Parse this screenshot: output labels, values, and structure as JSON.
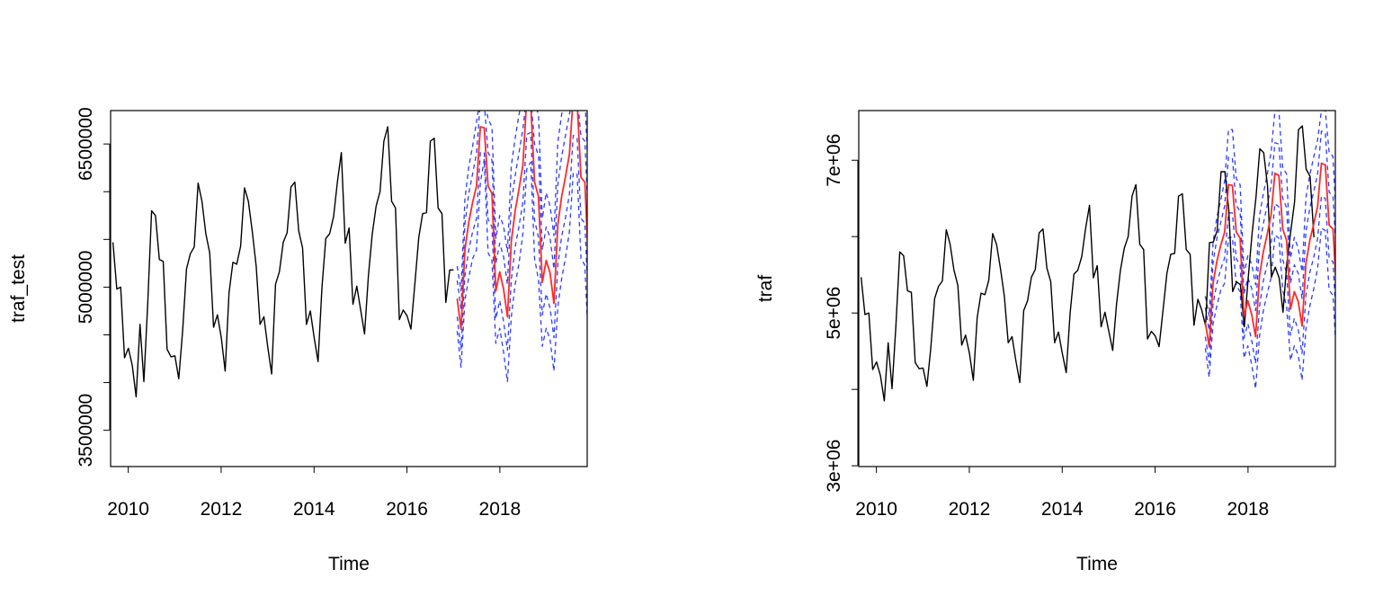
{
  "colors": {
    "observed": "#000000",
    "forecast": "#ff2a2a",
    "interval": "#2b3cff",
    "frame": "#000000"
  },
  "chart_data": [
    {
      "type": "line",
      "title": "",
      "xlabel": "Time",
      "ylabel": "traf_test",
      "xlim": [
        2009.62,
        2019.88
      ],
      "ylim": [
        3120000,
        6850000
      ],
      "x_ticks": [
        2010,
        2012,
        2014,
        2016,
        2018
      ],
      "x_tick_labels": [
        "2010",
        "2012",
        "2014",
        "2016",
        "2018"
      ],
      "y_ticks": [
        3500000,
        4000000,
        4500000,
        5000000,
        5500000,
        6000000,
        6500000
      ],
      "y_tick_labels": [
        "3500000",
        "",
        "",
        "5000000",
        "",
        "",
        "6500000"
      ],
      "grid": false,
      "series": [
        {
          "role": "observed",
          "start": 2009.67,
          "frequency": 12,
          "values": [
            5470000,
            4980000,
            5000000,
            4260000,
            4360000,
            4180000,
            3850000,
            4610000,
            4010000,
            4830000,
            5800000,
            5750000,
            5290000,
            5270000,
            4350000,
            4270000,
            4280000,
            4040000,
            4540000,
            5190000,
            5350000,
            5420000,
            6090000,
            5900000,
            5560000,
            5360000,
            4580000,
            4710000,
            4470000,
            4120000,
            4940000,
            5260000,
            5240000,
            5430000,
            6040000,
            5900000,
            5580000,
            5220000,
            4610000,
            4690000,
            4370000,
            4090000,
            5030000,
            5160000,
            5470000,
            5570000,
            6050000,
            6100000,
            5590000,
            5410000,
            4610000,
            4750000,
            4470000,
            4220000,
            4990000,
            5510000,
            5560000,
            5740000,
            6110000,
            6410000,
            5460000,
            5620000,
            4820000,
            5010000,
            4760000,
            4510000,
            5120000,
            5560000,
            5850000,
            6000000,
            6530000,
            6680000,
            5900000,
            5830000,
            4660000,
            4760000,
            4700000,
            4560000,
            5040000,
            5520000,
            5770000,
            5780000,
            6530000,
            6560000,
            5830000,
            5770000,
            4840000,
            5180000,
            5180000
          ]
        },
        {
          "role": "forecast",
          "start": 2017.08,
          "frequency": 12,
          "values": [
            4880000,
            4560000,
            5390000,
            5680000,
            5890000,
            6060000,
            6680000,
            6670000,
            6060000,
            5980000,
            4960000,
            5160000,
            4980000,
            4690000,
            5480000,
            5800000,
            6030000,
            6280000,
            6980000,
            6920000,
            6100000,
            5950000,
            5050000,
            5280000,
            5150000,
            4830000,
            5650000,
            5950000,
            6160000,
            6390000,
            7000000,
            6940000,
            6150000,
            6100000,
            5190000
          ]
        },
        {
          "role": "upper",
          "start": 2017.08,
          "frequency": 12,
          "values": [
            5220000,
            4960000,
            5920000,
            6260000,
            6480000,
            6730000,
            7000000,
            7000000,
            6760000,
            6680000,
            5510000,
            5750000,
            5640000,
            5370000,
            6270000,
            6560000,
            6810000,
            7000000,
            7000000,
            7000000,
            6900000,
            6820000,
            5720000,
            5990000,
            5850000,
            5540000,
            6510000,
            6810000,
            7000000,
            7000000,
            7000000,
            7000000,
            7000000,
            7000000,
            6050000
          ]
        },
        {
          "role": "upper_inner",
          "start": 2017.08,
          "frequency": 12,
          "values": [
            5070000,
            4770000,
            5660000,
            5980000,
            6190000,
            6400000,
            6950000,
            6930000,
            6410000,
            6330000,
            5250000,
            5460000,
            5320000,
            5030000,
            5880000,
            6170000,
            6410000,
            6660000,
            7000000,
            7000000,
            6500000,
            6380000,
            5390000,
            5630000,
            5520000,
            5190000,
            6070000,
            6370000,
            6590000,
            6810000,
            7000000,
            7000000,
            6580000,
            6530000,
            5620000
          ]
        },
        {
          "role": "lower_inner",
          "start": 2017.08,
          "frequency": 12,
          "values": [
            4690000,
            4350000,
            5120000,
            5390000,
            5580000,
            5720000,
            6410000,
            6410000,
            5710000,
            5630000,
            4670000,
            4860000,
            4640000,
            4340000,
            5080000,
            5420000,
            5640000,
            5890000,
            6600000,
            6620000,
            5700000,
            5520000,
            4710000,
            4930000,
            4780000,
            4470000,
            5230000,
            5530000,
            5730000,
            5970000,
            6590000,
            6560000,
            5720000,
            5670000,
            4760000
          ]
        },
        {
          "role": "lower",
          "start": 2017.08,
          "frequency": 12,
          "values": [
            4540000,
            4160000,
            4860000,
            5100000,
            5300000,
            5390000,
            6090000,
            6340000,
            5360000,
            5280000,
            4410000,
            4570000,
            4320000,
            4010000,
            4690000,
            5030000,
            5250000,
            5560000,
            6240000,
            6310000,
            5300000,
            5080000,
            4380000,
            4570000,
            4450000,
            4120000,
            4790000,
            5090000,
            5310000,
            5580000,
            6200000,
            6180000,
            5300000,
            5230000,
            4330000
          ]
        }
      ]
    },
    {
      "type": "line",
      "title": "",
      "xlabel": "Time",
      "ylabel": "traf",
      "xlim": [
        2009.62,
        2019.88
      ],
      "ylim": [
        2990000,
        7650000
      ],
      "x_ticks": [
        2010,
        2012,
        2014,
        2016,
        2018
      ],
      "x_tick_labels": [
        "2010",
        "2012",
        "2014",
        "2016",
        "2018"
      ],
      "y_ticks": [
        3000000,
        4000000,
        5000000,
        6000000,
        7000000
      ],
      "y_tick_labels": [
        "3e+06",
        "",
        "5e+06",
        "",
        "7e+06"
      ],
      "grid": false,
      "series": [
        {
          "role": "observed",
          "start": 2009.67,
          "frequency": 12,
          "values": [
            5470000,
            4980000,
            5000000,
            4260000,
            4360000,
            4180000,
            3850000,
            4610000,
            4010000,
            4830000,
            5800000,
            5750000,
            5290000,
            5270000,
            4350000,
            4270000,
            4280000,
            4040000,
            4540000,
            5190000,
            5350000,
            5420000,
            6090000,
            5900000,
            5560000,
            5360000,
            4580000,
            4710000,
            4470000,
            4120000,
            4940000,
            5260000,
            5240000,
            5430000,
            6040000,
            5900000,
            5580000,
            5220000,
            4610000,
            4690000,
            4370000,
            4090000,
            5030000,
            5160000,
            5470000,
            5570000,
            6050000,
            6100000,
            5590000,
            5410000,
            4610000,
            4750000,
            4470000,
            4220000,
            4990000,
            5510000,
            5560000,
            5740000,
            6110000,
            6410000,
            5460000,
            5620000,
            4820000,
            5010000,
            4760000,
            4510000,
            5120000,
            5560000,
            5850000,
            6000000,
            6530000,
            6680000,
            5900000,
            5830000,
            4660000,
            4760000,
            4700000,
            4560000,
            5040000,
            5520000,
            5770000,
            5780000,
            6530000,
            6560000,
            5830000,
            5770000,
            4840000,
            5180000,
            5040000,
            4830000,
            5920000,
            5930000,
            6080000,
            6850000,
            6850000,
            6350000,
            5280000,
            5410000,
            5370000,
            4820000,
            5460000,
            6040000,
            6510000,
            7150000,
            7100000,
            6660000,
            5470000,
            5600000,
            5460000,
            5010000,
            5660000,
            6070000,
            6460000,
            7400000,
            7450000,
            6880000,
            6790000,
            5990000
          ]
        },
        {
          "role": "forecast",
          "start": 2017.08,
          "frequency": 12,
          "values": [
            4880000,
            4560000,
            5390000,
            5680000,
            5890000,
            6060000,
            6680000,
            6670000,
            6060000,
            5980000,
            4960000,
            5160000,
            4980000,
            4690000,
            5480000,
            5800000,
            6030000,
            6280000,
            6830000,
            6800000,
            6100000,
            5950000,
            5050000,
            5280000,
            5150000,
            4830000,
            5650000,
            5950000,
            6160000,
            6390000,
            6960000,
            6940000,
            6150000,
            6100000,
            5190000
          ]
        },
        {
          "role": "upper",
          "start": 2017.08,
          "frequency": 12,
          "values": [
            5220000,
            4960000,
            5920000,
            6260000,
            6480000,
            6730000,
            7400000,
            7400000,
            6760000,
            6680000,
            5510000,
            5750000,
            5640000,
            5370000,
            6270000,
            6560000,
            6810000,
            7100000,
            7650000,
            7650000,
            6900000,
            6820000,
            5720000,
            5990000,
            5850000,
            5540000,
            6510000,
            6810000,
            7040000,
            7260000,
            7650000,
            7650000,
            7100000,
            7050000,
            6050000
          ]
        },
        {
          "role": "upper_inner",
          "start": 2017.08,
          "frequency": 12,
          "values": [
            5070000,
            4770000,
            5660000,
            5980000,
            6190000,
            6400000,
            7040000,
            7030000,
            6410000,
            6330000,
            5250000,
            5460000,
            5320000,
            5030000,
            5880000,
            6170000,
            6410000,
            6660000,
            7230000,
            7210000,
            6500000,
            6380000,
            5390000,
            5630000,
            5520000,
            5190000,
            6070000,
            6370000,
            6590000,
            6810000,
            7380000,
            7360000,
            6580000,
            6530000,
            5620000
          ]
        },
        {
          "role": "lower_inner",
          "start": 2017.08,
          "frequency": 12,
          "values": [
            4690000,
            4350000,
            5120000,
            5390000,
            5580000,
            5720000,
            6310000,
            6310000,
            5710000,
            5630000,
            4670000,
            4860000,
            4640000,
            4340000,
            5080000,
            5420000,
            5640000,
            5890000,
            6430000,
            6390000,
            5700000,
            5520000,
            4710000,
            4930000,
            4780000,
            4470000,
            5230000,
            5530000,
            5730000,
            5970000,
            6530000,
            6500000,
            5720000,
            5670000,
            4760000
          ]
        },
        {
          "role": "lower",
          "start": 2017.08,
          "frequency": 12,
          "values": [
            4540000,
            4160000,
            4860000,
            5100000,
            5300000,
            5390000,
            5990000,
            5990000,
            5360000,
            5280000,
            4410000,
            4570000,
            4320000,
            4010000,
            4690000,
            5030000,
            5250000,
            5460000,
            6020000,
            5980000,
            5300000,
            5080000,
            4380000,
            4570000,
            4450000,
            4120000,
            4790000,
            5090000,
            5310000,
            5580000,
            6110000,
            6080000,
            5300000,
            5230000,
            4330000
          ]
        }
      ]
    }
  ]
}
